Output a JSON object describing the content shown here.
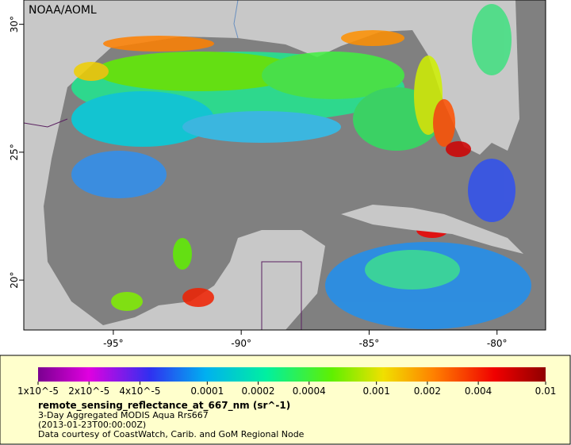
{
  "map": {
    "credit": "NOAA/AOML",
    "lonlim": [
      -98.5,
      -78.1
    ],
    "latlim": [
      18.05,
      30.95
    ],
    "lon_ticks": [
      {
        "value": -95,
        "label": "-95°"
      },
      {
        "value": -90,
        "label": "-90°"
      },
      {
        "value": -85,
        "label": "-85°"
      },
      {
        "value": -80,
        "label": "-80°"
      }
    ],
    "lat_ticks": [
      {
        "value": 30,
        "label": "30°"
      },
      {
        "value": 25,
        "label": "25°"
      },
      {
        "value": 20,
        "label": "20°"
      }
    ]
  },
  "colorbar": {
    "scale": "log",
    "range": [
      1e-05,
      0.01
    ],
    "ticks": [
      {
        "value": 1e-05,
        "label": "1x10^-5"
      },
      {
        "value": 2e-05,
        "label": "2x10^-5"
      },
      {
        "value": 4e-05,
        "label": "4x10^-5"
      },
      0.0001,
      0.0002,
      0.0004,
      0.001,
      0.002,
      0.004,
      0.01
    ],
    "title": "remote_sensing_reflectance_at_667_nm (sr^-1)",
    "lines": [
      "3-Day Aggregated MODIS Aqua Rrs667",
      "(2013-01-23T00:00:00Z)",
      "Data courtesy of CoastWatch, Carib. and GoM Regional Node"
    ]
  }
}
